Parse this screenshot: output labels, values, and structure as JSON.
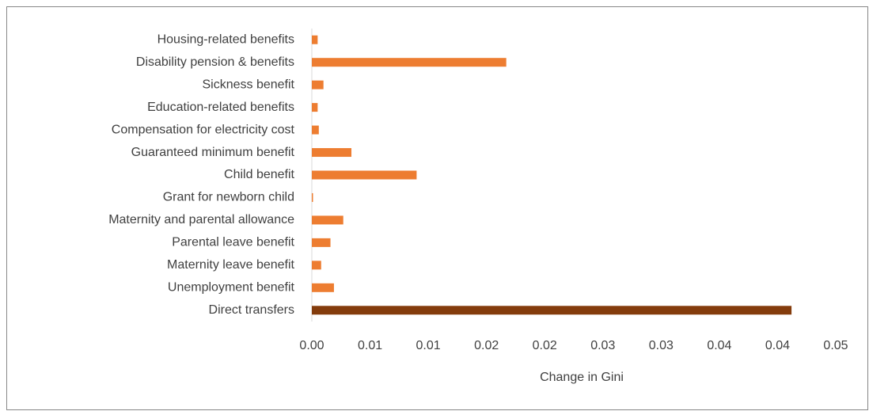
{
  "chart_data": {
    "type": "hbar",
    "x_label": "Change in Gini",
    "categories": [
      "Housing-related benefits",
      "Disability pension & benefits",
      "Sickness benefit",
      "Education-related benefits",
      "Compensation for electricity cost",
      "Guaranteed minimum benefit",
      "Child benefit",
      "Grant for newborn child",
      "Maternity and parental allowance",
      "Parental leave benefit",
      "Maternity leave benefit",
      "Unemployment benefit",
      "Direct transfers"
    ],
    "values": [
      0.0005,
      0.0167,
      0.001,
      0.0005,
      0.0006,
      0.0034,
      0.009,
      0.0001,
      0.0027,
      0.0016,
      0.0008,
      0.0019,
      0.0412
    ],
    "colors": [
      "#ed7d31",
      "#ed7d31",
      "#ed7d31",
      "#ed7d31",
      "#ed7d31",
      "#ed7d31",
      "#ed7d31",
      "#ed7d31",
      "#ed7d31",
      "#ed7d31",
      "#ed7d31",
      "#ed7d31",
      "#843c0c"
    ],
    "xlim": [
      0,
      0.045
    ],
    "xticks": [
      {
        "value": 0,
        "label": "0.00"
      },
      {
        "value": 0.005,
        "label": "0.01"
      },
      {
        "value": 0.01,
        "label": "0.01"
      },
      {
        "value": 0.015,
        "label": "0.02"
      },
      {
        "value": 0.02,
        "label": "0.02"
      },
      {
        "value": 0.025,
        "label": "0.03"
      },
      {
        "value": 0.03,
        "label": "0.03"
      },
      {
        "value": 0.035,
        "label": "0.04"
      },
      {
        "value": 0.04,
        "label": "0.04"
      },
      {
        "value": 0.045,
        "label": "0.05"
      }
    ],
    "grid": false
  }
}
